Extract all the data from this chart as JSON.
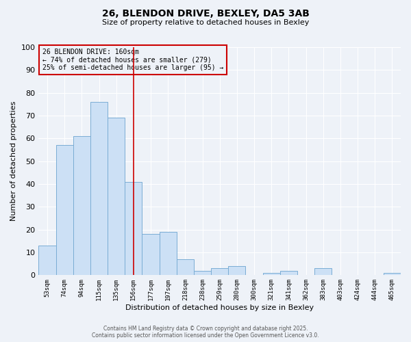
{
  "title": "26, BLENDON DRIVE, BEXLEY, DA5 3AB",
  "subtitle": "Size of property relative to detached houses in Bexley",
  "xlabel": "Distribution of detached houses by size in Bexley",
  "ylabel": "Number of detached properties",
  "categories": [
    "53sqm",
    "74sqm",
    "94sqm",
    "115sqm",
    "135sqm",
    "156sqm",
    "177sqm",
    "197sqm",
    "218sqm",
    "238sqm",
    "259sqm",
    "280sqm",
    "300sqm",
    "321sqm",
    "341sqm",
    "362sqm",
    "383sqm",
    "403sqm",
    "424sqm",
    "444sqm",
    "465sqm"
  ],
  "values": [
    13,
    57,
    61,
    76,
    69,
    41,
    18,
    19,
    7,
    2,
    3,
    4,
    0,
    1,
    2,
    0,
    3,
    0,
    0,
    0,
    1
  ],
  "bar_color": "#cce0f5",
  "bar_edge_color": "#7aadd4",
  "ylim": [
    0,
    100
  ],
  "yticks": [
    0,
    10,
    20,
    30,
    40,
    50,
    60,
    70,
    80,
    90,
    100
  ],
  "vline_index": 5,
  "vline_color": "#cc0000",
  "annotation_title": "26 BLENDON DRIVE: 160sqm",
  "annotation_line1": "← 74% of detached houses are smaller (279)",
  "annotation_line2": "25% of semi-detached houses are larger (95) →",
  "annotation_box_color": "#cc0000",
  "background_color": "#eef2f8",
  "grid_color": "#ffffff",
  "footer1": "Contains HM Land Registry data © Crown copyright and database right 2025.",
  "footer2": "Contains public sector information licensed under the Open Government Licence v3.0."
}
